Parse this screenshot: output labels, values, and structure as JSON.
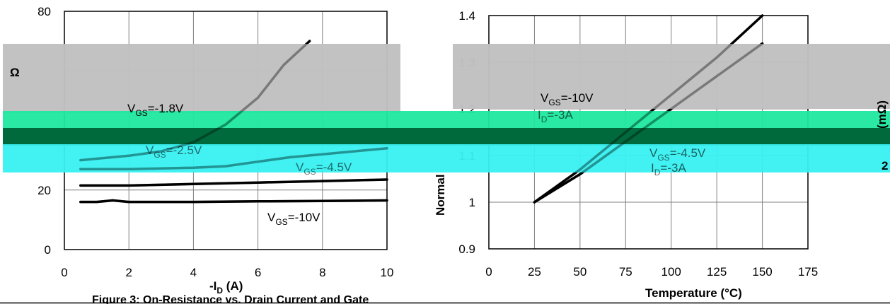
{
  "chart_data": [
    {
      "type": "line",
      "title": "",
      "xlabel_main": "-I",
      "xlabel_sub": "D",
      "xlabel_unit": " (A)",
      "ylabel_visible": "Ω",
      "xlim": [
        0,
        10
      ],
      "ylim": [
        0,
        80
      ],
      "x_ticks": [
        "0",
        "2",
        "4",
        "6",
        "8",
        "10"
      ],
      "y_ticks": [
        "0",
        "20",
        "80"
      ],
      "grid": true,
      "series": [
        {
          "name": "VGS=-1.8V",
          "x": [
            0.5,
            2,
            3,
            4,
            5,
            6,
            6.8,
            7.6
          ],
          "values": [
            30,
            31.5,
            33,
            36,
            42,
            51,
            62,
            70
          ]
        },
        {
          "name": "VGS=-2.5V",
          "x": [
            0.5,
            2,
            4,
            5,
            6,
            7,
            8,
            10
          ],
          "values": [
            27,
            27,
            27.5,
            28,
            29.5,
            31,
            32,
            34
          ]
        },
        {
          "name": "VGS=-4.5V",
          "x": [
            0.5,
            2,
            4,
            6,
            8,
            10
          ],
          "values": [
            21.5,
            21.5,
            22,
            22.5,
            23,
            23.5
          ]
        },
        {
          "name": "VGS=-10V",
          "x": [
            0.5,
            1,
            1.5,
            2,
            4,
            6,
            8,
            10
          ],
          "values": [
            16,
            16,
            16.5,
            16,
            16,
            16.2,
            16.3,
            16.5
          ]
        }
      ],
      "annotations": [
        {
          "main": "V",
          "sub": "GS",
          "rest": "=-1.8V"
        },
        {
          "main": "V",
          "sub": "GS",
          "rest": "=-2.5V"
        },
        {
          "main": "V",
          "sub": "GS",
          "rest": "=-4.5V"
        },
        {
          "main": "V",
          "sub": "GS",
          "rest": "=-10V"
        }
      ],
      "caption": "Figure 3: On-Resistance vs. Drain Current and Gate"
    },
    {
      "type": "line",
      "title": "",
      "xlabel": "Temperature (°C)",
      "ylabel_visible": "Normal",
      "xlim": [
        0,
        175
      ],
      "ylim": [
        0.9,
        1.4
      ],
      "x_ticks": [
        "0",
        "25",
        "50",
        "75",
        "100",
        "125",
        "150",
        "175"
      ],
      "y_ticks": [
        "0.9",
        "1",
        "1.1",
        "1.2",
        "1.3",
        "1.4"
      ],
      "grid": true,
      "series": [
        {
          "name": "VGS=-10V, ID=-3A",
          "x": [
            25,
            50,
            75,
            100,
            125,
            150
          ],
          "values": [
            1.0,
            1.07,
            1.15,
            1.23,
            1.31,
            1.4
          ]
        },
        {
          "name": "VGS=-4.5V, ID=-3A",
          "x": [
            25,
            50,
            75,
            100,
            125,
            150
          ],
          "values": [
            1.0,
            1.06,
            1.13,
            1.2,
            1.27,
            1.34
          ]
        }
      ],
      "annotations": [
        {
          "main": "V",
          "sub": "GS",
          "rest": "=-10V"
        },
        {
          "main": "I",
          "sub": "D",
          "rest": "=-3A"
        },
        {
          "main": "V",
          "sub": "GS",
          "rest": "=-4.5V"
        },
        {
          "main": "I",
          "sub": "D",
          "rest": "=-3A"
        }
      ],
      "right_axis_label": "(mΩ)",
      "right_axis_tick": "2"
    }
  ],
  "overlay_colors": {
    "grey": "#c0c0c0",
    "green": "#1de8a0",
    "dark_green": "#006a3c",
    "cyan": "#38f0f0"
  }
}
